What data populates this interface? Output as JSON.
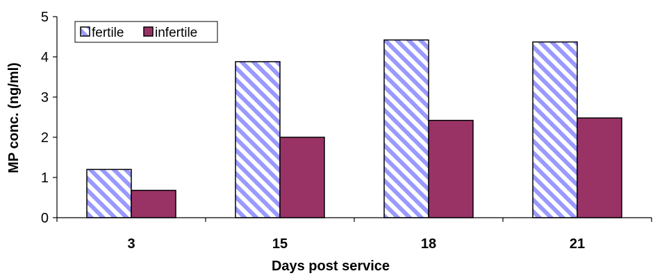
{
  "chart_data": {
    "type": "bar",
    "title": "",
    "xlabel": "Days post service",
    "ylabel": "MP conc. (ng/ml)",
    "ylim": [
      0,
      5
    ],
    "yticks": [
      "0",
      "1",
      "2",
      "3",
      "4",
      "5"
    ],
    "categories": [
      "3",
      "15",
      "18",
      "21"
    ],
    "series": [
      {
        "name": "fertile",
        "values": [
          1.2,
          3.88,
          4.42,
          4.37
        ],
        "color": "#9999FF",
        "pattern": "diagonal-stripes"
      },
      {
        "name": "infertile",
        "values": [
          0.68,
          2.0,
          2.42,
          2.48
        ],
        "color": "#993366"
      }
    ],
    "legend": "top-left",
    "grid": false
  }
}
